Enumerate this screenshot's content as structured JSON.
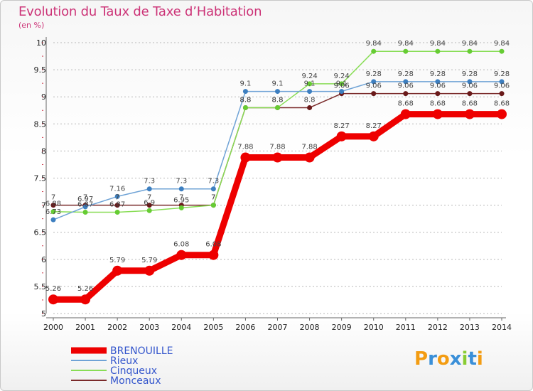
{
  "title": "Evolution du Taux de Taxe d’Habitation",
  "subtitle": "(en %)",
  "logo_text": "Proxiti",
  "chart_data": {
    "type": "line",
    "x": [
      2000,
      2001,
      2002,
      2003,
      2004,
      2005,
      2006,
      2007,
      2008,
      2009,
      2010,
      2011,
      2012,
      2013,
      2014
    ],
    "ylim": [
      5,
      10
    ],
    "yticks": [
      5,
      5.5,
      6,
      6.5,
      7,
      7.5,
      8,
      8.5,
      9,
      9.5,
      10
    ],
    "grid": "horizontal-dashed",
    "legend_position": "bottom-left",
    "series": [
      {
        "name": "BRENOUILLE",
        "color": "#ee0000",
        "width": 9,
        "marker": 7,
        "values": [
          5.26,
          5.26,
          5.79,
          5.79,
          6.08,
          6.08,
          7.88,
          7.88,
          7.88,
          8.27,
          8.27,
          8.68,
          8.68,
          8.68,
          8.68
        ]
      },
      {
        "name": "Rieux",
        "color": "#6fa3d6",
        "width": 1.5,
        "marker": 3.5,
        "marker_color": "#3d7fc0",
        "values": [
          6.73,
          6.97,
          7.16,
          7.3,
          7.3,
          7.3,
          9.1,
          9.1,
          9.1,
          9.1,
          9.28,
          9.28,
          9.28,
          9.28,
          9.28
        ]
      },
      {
        "name": "Cinqueux",
        "color": "#88dd55",
        "width": 1.5,
        "marker": 3.5,
        "marker_color": "#66cc33",
        "values": [
          6.88,
          6.87,
          6.87,
          6.9,
          6.95,
          7,
          8.8,
          8.8,
          9.24,
          9.24,
          9.84,
          9.84,
          9.84,
          9.84,
          9.84
        ]
      },
      {
        "name": "Monceaux",
        "color": "#7a2a2a",
        "width": 1.5,
        "marker": 3.5,
        "marker_color": "#6a1a1a",
        "values": [
          7,
          7,
          7,
          7,
          7,
          7,
          8.8,
          8.8,
          8.8,
          9.06,
          9.06,
          9.06,
          9.06,
          9.06,
          9.06
        ]
      }
    ],
    "label_series_order": [
      "Monceaux",
      "Cinqueux",
      "Rieux",
      "BRENOUILLE"
    ],
    "data_labels": {
      "BRENOUILLE": [
        "5.26",
        "5.26",
        "5.79",
        "5.79",
        "6.08",
        "6.08",
        "7.88",
        "7.88",
        "7.88",
        "8.27",
        "8.27",
        "8.68",
        "8.68",
        "8.68",
        "8.68"
      ],
      "Rieux": [
        "6.73",
        "6.97",
        "7.16",
        "7.3",
        "7.3",
        "7.3",
        "9.1",
        "9.1",
        "9.1",
        "9.1",
        "9.28",
        "9.28",
        "9.28",
        "9.28",
        "9.28"
      ],
      "Cinqueux": [
        "6.88",
        "6.87",
        "6.87",
        "6.9",
        "6.95",
        "7",
        "8.8",
        "8.8",
        "9.24",
        "9.24",
        "9.84",
        "9.84",
        "9.84",
        "9.84",
        "9.84"
      ],
      "Monceaux": [
        "7",
        "7",
        "7",
        "7",
        "7",
        "7",
        "8.8",
        "8.8",
        "8.8",
        "9.06",
        "9.06",
        "9.06",
        "9.06",
        "9.06",
        "9.06"
      ]
    }
  }
}
